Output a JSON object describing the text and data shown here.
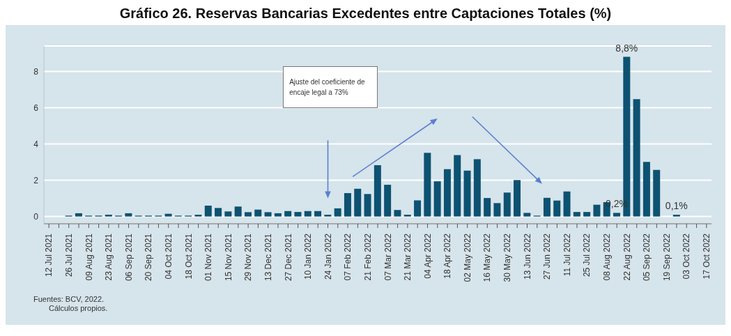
{
  "chart_data": {
    "type": "bar",
    "title": "Gráfico 26. Reservas Bancarias Excedentes entre Captaciones Totales (%)",
    "categories": [
      "12 Jul 2021",
      null,
      "26 Jul 2021",
      null,
      "09 Aug 2021",
      null,
      "23 Aug 2021",
      null,
      "06 Sep 2021",
      null,
      "20 Sep 2021",
      null,
      "04 Oct 2021",
      null,
      "18 Oct 2021",
      null,
      "01 Nov 2021",
      null,
      "15 Nov 2021",
      null,
      "29 Nov 2021",
      null,
      "13 Dec 2021",
      null,
      "27 Dec 2021",
      null,
      "10 Jan 2022",
      null,
      "24 Jan 2022",
      null,
      "07 Feb 2022",
      null,
      "21 Feb 2022",
      null,
      "07 Mar 2022",
      null,
      "21 Mar 2022",
      null,
      "04 Apr 2022",
      null,
      "18 Apr 2022",
      null,
      "02 May 2022",
      null,
      "16 May 2022",
      null,
      "30 May 2022",
      null,
      "13 Jun 2022",
      null,
      "27 Jun 2022",
      null,
      "11 Jul 2022",
      null,
      "25 Jul 2022",
      null,
      "08 Aug 2022",
      null,
      "22 Aug 2022",
      null,
      "05 Sep 2022",
      null,
      "19 Sep 2022",
      null,
      "03 Oct 2022",
      null,
      "17 Oct 2022"
    ],
    "values": [
      0,
      0,
      0.05,
      0.18,
      0.05,
      0.05,
      0.1,
      0.05,
      0.18,
      0.05,
      0.05,
      0.05,
      0.15,
      0.05,
      0.05,
      0.1,
      0.6,
      0.47,
      0.28,
      0.55,
      0.24,
      0.38,
      0.24,
      0.18,
      0.3,
      0.25,
      0.3,
      0.3,
      0.1,
      0.45,
      1.29,
      1.53,
      1.24,
      2.83,
      1.75,
      0.36,
      0.1,
      0.89,
      3.51,
      1.94,
      2.61,
      3.39,
      2.53,
      3.16,
      1.02,
      0.74,
      1.32,
      2.01,
      0.2,
      0.05,
      1.03,
      0.88,
      1.38,
      0.25,
      0.25,
      0.65,
      0.79,
      0.2,
      8.8,
      6.47,
      3.01,
      2.57,
      0,
      0.1,
      0,
      0,
      0
    ],
    "value_labels": [
      null,
      null,
      null,
      null,
      null,
      null,
      null,
      null,
      null,
      null,
      null,
      null,
      null,
      null,
      null,
      null,
      null,
      null,
      null,
      null,
      null,
      null,
      null,
      null,
      null,
      null,
      null,
      null,
      null,
      null,
      null,
      null,
      null,
      null,
      null,
      null,
      null,
      null,
      null,
      null,
      null,
      null,
      null,
      null,
      null,
      null,
      null,
      null,
      null,
      null,
      null,
      null,
      null,
      null,
      null,
      null,
      null,
      "0,2%",
      "8,8%",
      null,
      null,
      null,
      null,
      "0,1%",
      null,
      null,
      null
    ],
    "color": "#0d5272",
    "ylim": [
      -0.4,
      9.4
    ],
    "yticks": [
      0,
      2,
      4,
      6,
      8
    ],
    "grid": "y",
    "annotations": [
      "Ajuste del coeficiente de encaje legal a 73%",
      "Fuentes: BCV, 2022.",
      "Cálculos propios."
    ]
  }
}
